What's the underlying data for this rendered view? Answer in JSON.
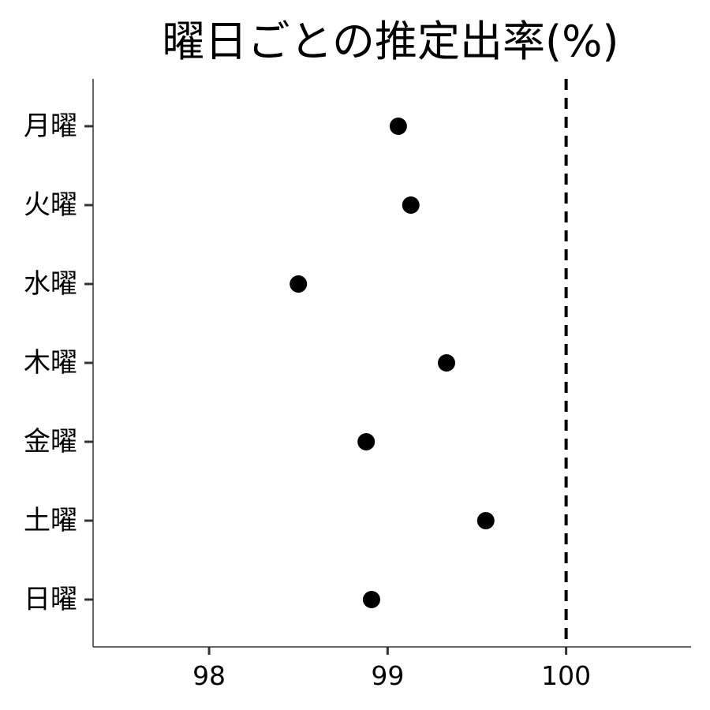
{
  "chart_data": {
    "type": "scatter",
    "title": "曜日ごとの推定出率(%)",
    "xlabel": "",
    "ylabel": "",
    "categories": [
      "月曜",
      "火曜",
      "水曜",
      "木曜",
      "金曜",
      "土曜",
      "日曜"
    ],
    "values": [
      99.06,
      99.13,
      98.5,
      99.33,
      98.88,
      99.55,
      98.91
    ],
    "xlim": [
      97.35,
      100.7
    ],
    "xticks": [
      98,
      99,
      100
    ],
    "reference_line": {
      "x": 100,
      "style": "dashed"
    },
    "grid": false,
    "legend": "none",
    "point_color": "#000000"
  }
}
